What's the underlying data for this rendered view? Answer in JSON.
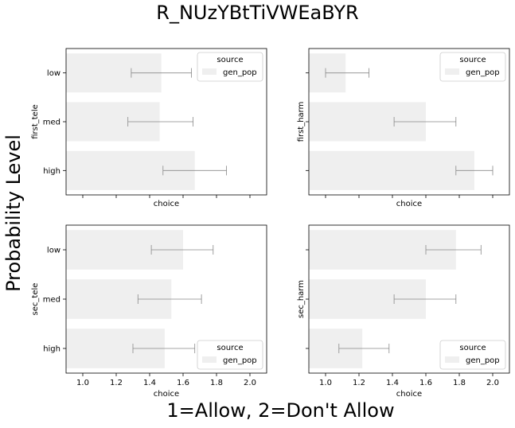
{
  "suptitle": "R_NUzYBtTiVWEaBYR",
  "supylabel": "Probability Level",
  "supxlabel": "1=Allow, 2=Don't Allow",
  "chart_data": [
    {
      "type": "bar",
      "orientation": "horizontal",
      "position": "top-left",
      "ylabel": "first_tele",
      "xlabel": "choice",
      "categories": [
        "low",
        "med",
        "high"
      ],
      "series": [
        {
          "name": "gen_pop",
          "values": [
            1.47,
            1.46,
            1.67
          ],
          "ci_low": [
            1.29,
            1.27,
            1.48
          ],
          "ci_high": [
            1.65,
            1.66,
            1.86
          ]
        }
      ],
      "xlim": [
        0.9,
        2.1
      ],
      "xticks": [],
      "show_xtick_labels": false,
      "legend": {
        "title": "source",
        "location": "top-right"
      },
      "bar_color": "#efefef",
      "error_color": "#888888"
    },
    {
      "type": "bar",
      "orientation": "horizontal",
      "position": "top-right",
      "ylabel": "first_harm",
      "xlabel": "choice",
      "categories": [
        "low",
        "med",
        "high"
      ],
      "series": [
        {
          "name": "gen_pop",
          "values": [
            1.12,
            1.6,
            1.89
          ],
          "ci_low": [
            1.0,
            1.41,
            1.78
          ],
          "ci_high": [
            1.26,
            1.78,
            2.0
          ]
        }
      ],
      "xlim": [
        0.9,
        2.1
      ],
      "xticks": [],
      "show_xtick_labels": false,
      "show_ytick_labels": false,
      "legend": {
        "title": "source",
        "location": "top-right"
      },
      "bar_color": "#efefef",
      "error_color": "#888888"
    },
    {
      "type": "bar",
      "orientation": "horizontal",
      "position": "bottom-left",
      "ylabel": "sec_tele",
      "xlabel": "choice",
      "categories": [
        "low",
        "med",
        "high"
      ],
      "series": [
        {
          "name": "gen_pop",
          "values": [
            1.6,
            1.53,
            1.49
          ],
          "ci_low": [
            1.41,
            1.33,
            1.3
          ],
          "ci_high": [
            1.78,
            1.71,
            1.67
          ]
        }
      ],
      "xlim": [
        0.9,
        2.1
      ],
      "xticks": [
        "1.0",
        "1.2",
        "1.4",
        "1.6",
        "1.8",
        "2.0"
      ],
      "show_xtick_labels": true,
      "legend": {
        "title": "source",
        "location": "bottom-right"
      },
      "bar_color": "#efefef",
      "error_color": "#888888"
    },
    {
      "type": "bar",
      "orientation": "horizontal",
      "position": "bottom-right",
      "ylabel": "sec_harm",
      "xlabel": "choice",
      "categories": [
        "low",
        "med",
        "high"
      ],
      "series": [
        {
          "name": "gen_pop",
          "values": [
            1.78,
            1.6,
            1.22
          ],
          "ci_low": [
            1.6,
            1.41,
            1.08
          ],
          "ci_high": [
            1.93,
            1.78,
            1.38
          ]
        }
      ],
      "xlim": [
        0.9,
        2.1
      ],
      "xticks": [
        "1.0",
        "1.2",
        "1.4",
        "1.6",
        "1.8",
        "2.0"
      ],
      "show_xtick_labels": true,
      "show_ytick_labels": false,
      "legend": {
        "title": "source",
        "location": "bottom-right"
      },
      "bar_color": "#efefef",
      "error_color": "#888888"
    }
  ]
}
